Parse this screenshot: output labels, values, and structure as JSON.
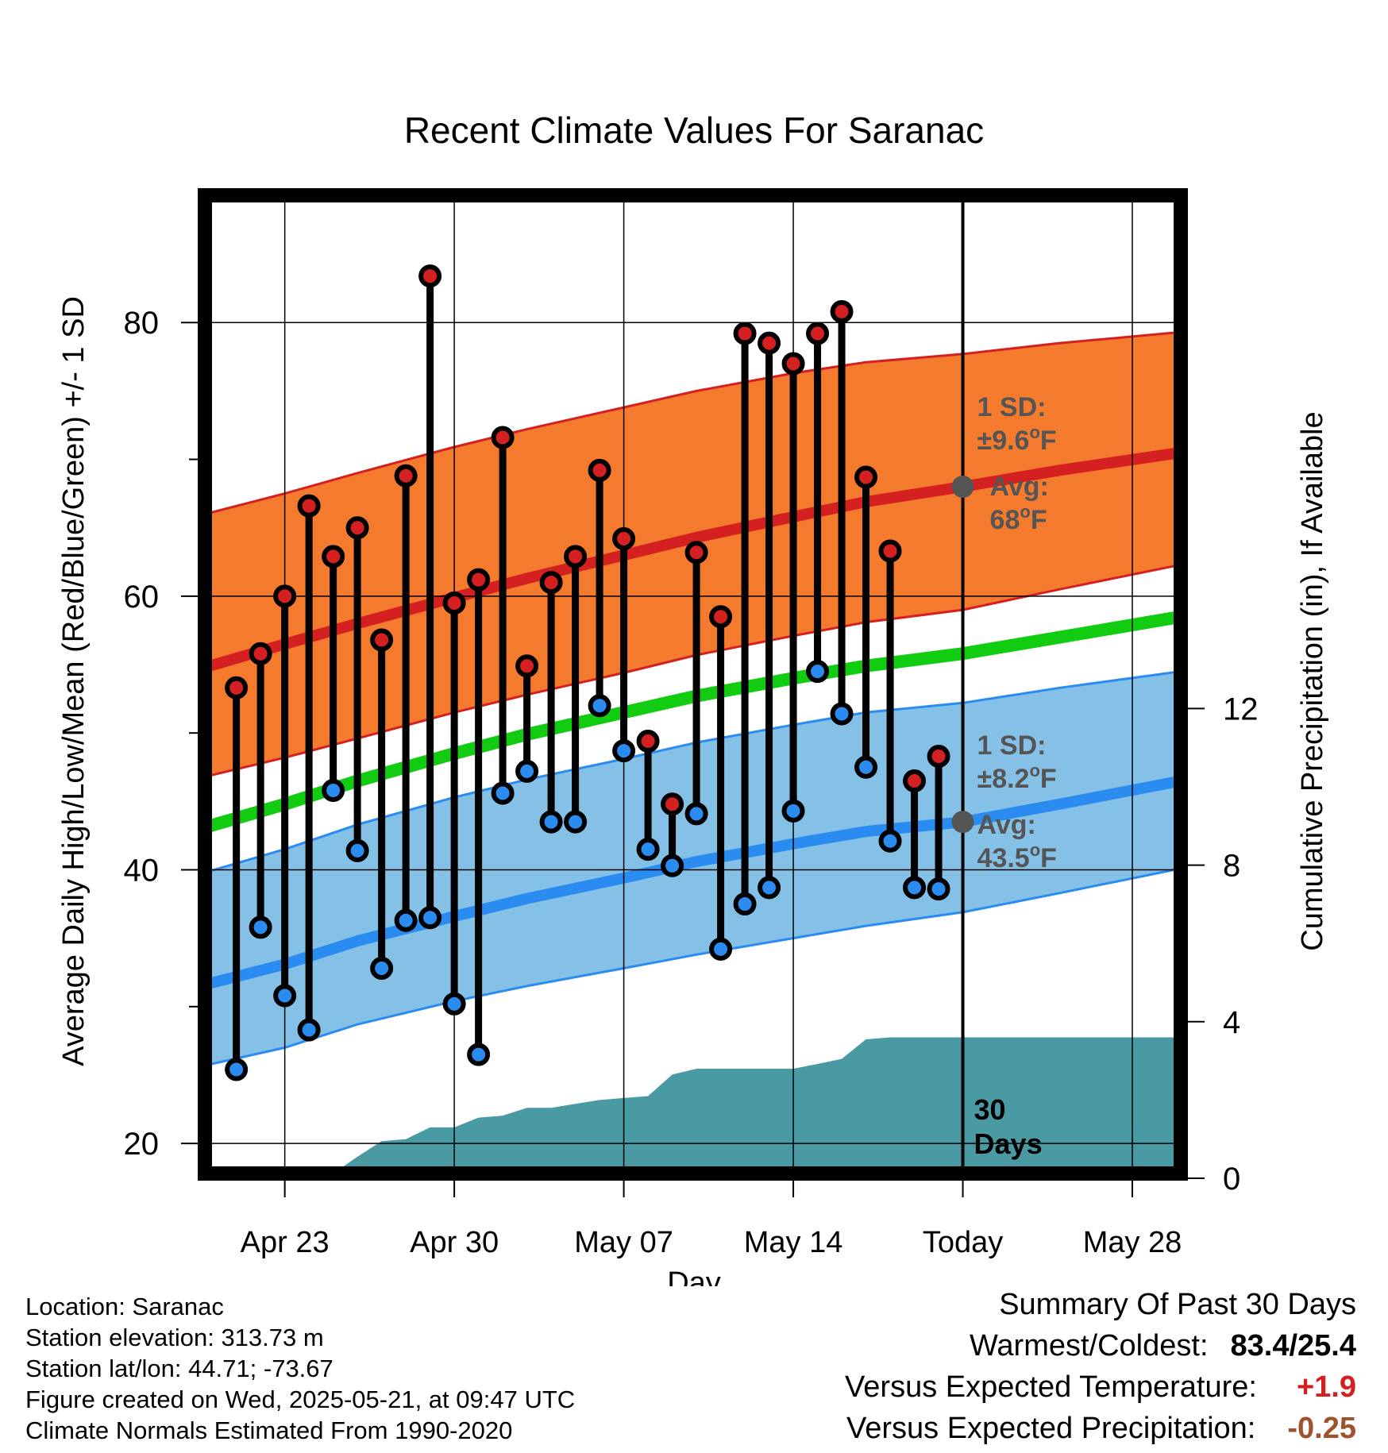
{
  "chart_data": {
    "type": "line",
    "title": "Recent Climate Values For Saranac",
    "xlabel": "Day",
    "ylabel": "Average Daily High/Low/Mean (Red/Blue/Green) +/- 1 SD",
    "y2label": "Cumulative Precipitation (in), If Available",
    "ylim": [
      17.8,
      89.3
    ],
    "y2lim": [
      0,
      20
    ],
    "xlim": [
      -1.3,
      39.0
    ],
    "x_ticks": [
      {
        "day": 2,
        "label": "Apr 23"
      },
      {
        "day": 9,
        "label": "Apr 30"
      },
      {
        "day": 16,
        "label": "May 07"
      },
      {
        "day": 23,
        "label": "May 14"
      },
      {
        "day": 30,
        "label": "Today"
      },
      {
        "day": 37,
        "label": "May 28"
      }
    ],
    "y_ticks": [
      20,
      40,
      60,
      80
    ],
    "y2_ticks": [
      0,
      4,
      8,
      12
    ],
    "grid": true,
    "today_day": 30,
    "days_label": [
      "30",
      "Days"
    ],
    "normals": {
      "days": [
        -1.3,
        2,
        5,
        9,
        12,
        16,
        19,
        23,
        26,
        30,
        34,
        39
      ],
      "high_mean": [
        54.8,
        56.5,
        58.0,
        59.9,
        61.3,
        63.0,
        64.3,
        65.8,
        66.9,
        68.0,
        69.2,
        70.5
      ],
      "high_upper": [
        66.0,
        67.5,
        69.0,
        70.9,
        72.2,
        73.8,
        75.0,
        76.3,
        77.1,
        77.7,
        78.5,
        79.3
      ],
      "high_lower": [
        46.8,
        48.2,
        49.6,
        51.5,
        52.8,
        54.4,
        55.7,
        57.1,
        58.1,
        59.0,
        60.5,
        62.3
      ],
      "daily_mean": [
        43.1,
        44.8,
        46.5,
        48.5,
        49.9,
        51.5,
        52.7,
        54.0,
        54.9,
        55.8,
        57.0,
        58.5
      ],
      "low_mean": [
        31.6,
        33.1,
        34.8,
        36.6,
        37.9,
        39.4,
        40.6,
        41.9,
        42.8,
        43.5,
        44.8,
        46.5
      ],
      "low_upper": [
        39.8,
        41.5,
        43.3,
        45.3,
        46.6,
        48.1,
        49.3,
        50.6,
        51.5,
        52.2,
        53.3,
        54.5
      ],
      "low_lower": [
        25.7,
        27.0,
        28.7,
        30.4,
        31.5,
        32.8,
        33.8,
        35.0,
        35.9,
        36.9,
        38.3,
        40.1
      ],
      "colors": {
        "high_band": "#f47a2e",
        "high_line": "#d42020",
        "low_band": "#85c1e7",
        "low_line": "#2a8cf0",
        "mean_line": "#11cc11"
      }
    },
    "high_annotation": {
      "sd_label": "1 SD:",
      "sd_value": "±9.6",
      "avg_label": "Avg:",
      "avg_value": "68",
      "unit": "oF",
      "avg_temp": 68.0
    },
    "low_annotation": {
      "sd_label": "1 SD:",
      "sd_value": "±8.2",
      "avg_label": "Avg:",
      "avg_value": "43.5",
      "unit": "oF",
      "avg_temp": 43.5
    },
    "series": [
      {
        "name": "High",
        "color": "#d42020",
        "x": [
          0,
          1,
          2,
          3,
          4,
          5,
          6,
          7,
          8,
          9,
          10,
          11,
          12,
          13,
          14,
          15,
          16,
          17,
          18,
          19,
          20,
          21,
          22,
          23,
          24,
          25,
          26,
          27,
          28,
          29
        ],
        "values": [
          53.3,
          55.8,
          60.0,
          66.6,
          62.9,
          65.0,
          56.8,
          68.8,
          83.4,
          59.5,
          61.2,
          71.6,
          54.9,
          61.0,
          62.9,
          69.2,
          64.2,
          49.4,
          44.8,
          63.2,
          58.5,
          79.2,
          78.5,
          77.0,
          79.2,
          80.8,
          68.7,
          63.3,
          46.5,
          48.3
        ]
      },
      {
        "name": "Low",
        "color": "#2a8cf0",
        "x": [
          0,
          1,
          2,
          3,
          4,
          5,
          6,
          7,
          8,
          9,
          10,
          11,
          12,
          13,
          14,
          15,
          16,
          17,
          18,
          19,
          20,
          21,
          22,
          23,
          24,
          25,
          26,
          27,
          28,
          29
        ],
        "values": [
          25.4,
          35.8,
          30.8,
          28.3,
          45.8,
          41.4,
          32.8,
          36.3,
          36.5,
          30.2,
          26.5,
          45.6,
          47.2,
          43.5,
          43.5,
          52.0,
          48.7,
          41.5,
          40.3,
          44.1,
          34.2,
          37.5,
          38.7,
          44.3,
          54.5,
          51.4,
          47.5,
          42.1,
          38.7,
          38.6
        ]
      }
    ],
    "precipitation": {
      "x": [
        -1.3,
        0,
        1,
        2,
        3,
        4,
        5,
        6,
        7,
        8,
        9,
        10,
        11,
        12,
        13,
        14,
        15,
        16,
        17,
        18,
        19,
        20,
        21,
        22,
        23,
        24,
        25,
        26,
        27,
        28,
        29,
        30,
        39.0
      ],
      "cumulative": [
        0,
        0,
        0,
        0,
        0,
        0.05,
        0.55,
        0.95,
        1.0,
        1.3,
        1.3,
        1.55,
        1.6,
        1.8,
        1.8,
        1.9,
        2.0,
        2.05,
        2.1,
        2.65,
        2.8,
        2.8,
        2.8,
        2.8,
        2.8,
        2.92,
        3.05,
        3.55,
        3.6,
        3.6,
        3.6,
        3.6,
        3.6
      ],
      "color": "#4a9aa4"
    }
  },
  "info": {
    "location": "Location: Saranac",
    "elevation": "Station elevation: 313.73 m",
    "latlon": "Station lat/lon: 44.71; -73.67",
    "created": "Figure created on Wed, 2025-05-21, at 09:47 UTC",
    "normals": "Climate Normals Estimated From 1990-2020"
  },
  "summary": {
    "heading": "Summary Of Past 30 Days",
    "warmest_label": "Warmest/Coldest:",
    "warmest_value": "83.4/25.4",
    "temp_label": "Versus Expected Temperature:",
    "temp_value": "+1.9",
    "precip_label": "Versus Expected Precipitation:",
    "precip_value": "-0.25"
  }
}
